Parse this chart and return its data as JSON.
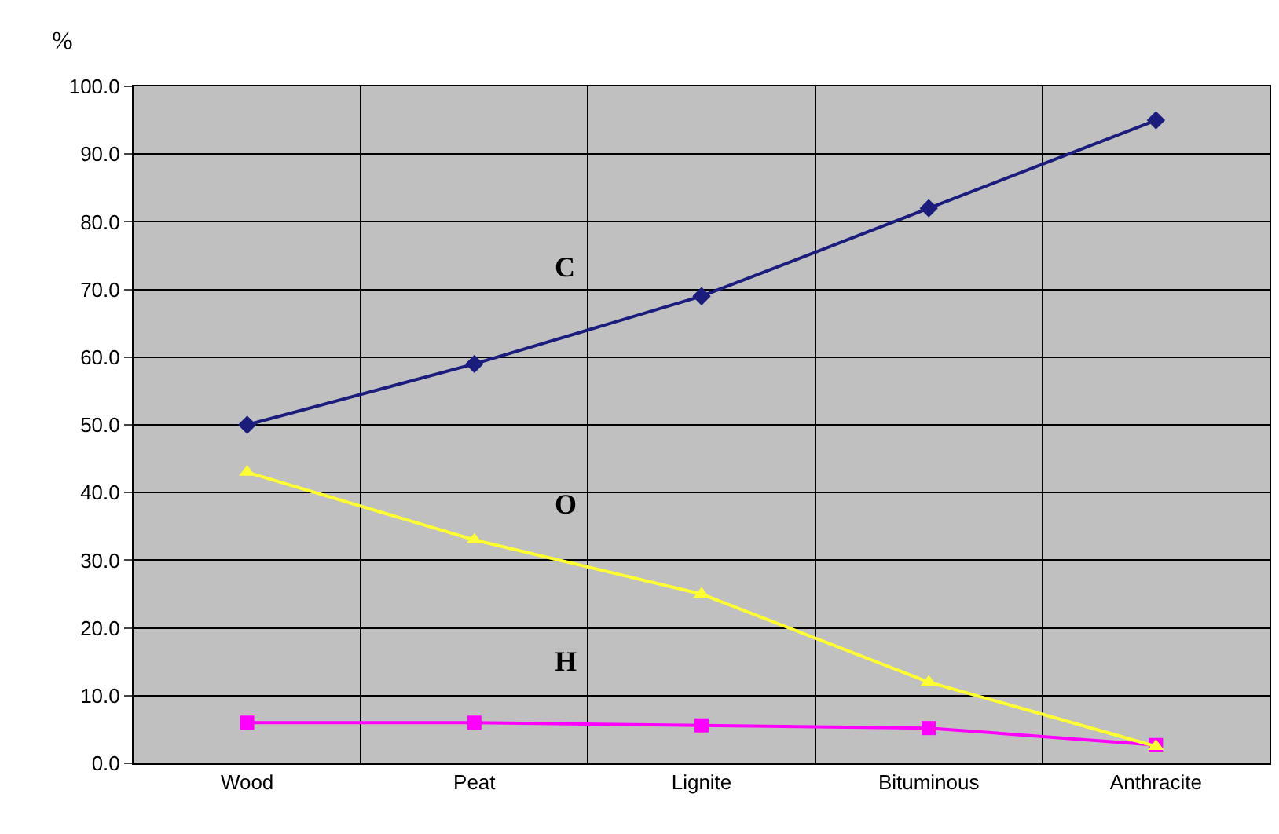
{
  "chart_data": {
    "type": "line",
    "ylabel": "%",
    "categories": [
      "Wood",
      "Peat",
      "Lignite",
      "Bituminous",
      "Anthracite"
    ],
    "series": [
      {
        "name": "C",
        "color": "#1c1c7c",
        "marker": "diamond",
        "values": [
          50,
          59,
          69,
          82,
          95
        ]
      },
      {
        "name": "O",
        "color": "#ffff33",
        "marker": "triangle",
        "values": [
          43,
          33,
          25,
          12,
          2.5
        ]
      },
      {
        "name": "H",
        "color": "#ff00ff",
        "marker": "square",
        "values": [
          6,
          6,
          5.6,
          5.2,
          2.7
        ]
      }
    ],
    "ylim": [
      0,
      100
    ],
    "yticks": [
      {
        "value": 0,
        "label": "0.0"
      },
      {
        "value": 10,
        "label": "10.0"
      },
      {
        "value": 20,
        "label": "20.0"
      },
      {
        "value": 30,
        "label": "30.0"
      },
      {
        "value": 40,
        "label": "40.0"
      },
      {
        "value": 50,
        "label": "50.0"
      },
      {
        "value": 60,
        "label": "60.0"
      },
      {
        "value": 70,
        "label": "70.0"
      },
      {
        "value": 80,
        "label": "80.0"
      },
      {
        "value": 90,
        "label": "90.0"
      },
      {
        "value": 100,
        "label": "100.0"
      }
    ],
    "grid": true,
    "legend": false
  }
}
